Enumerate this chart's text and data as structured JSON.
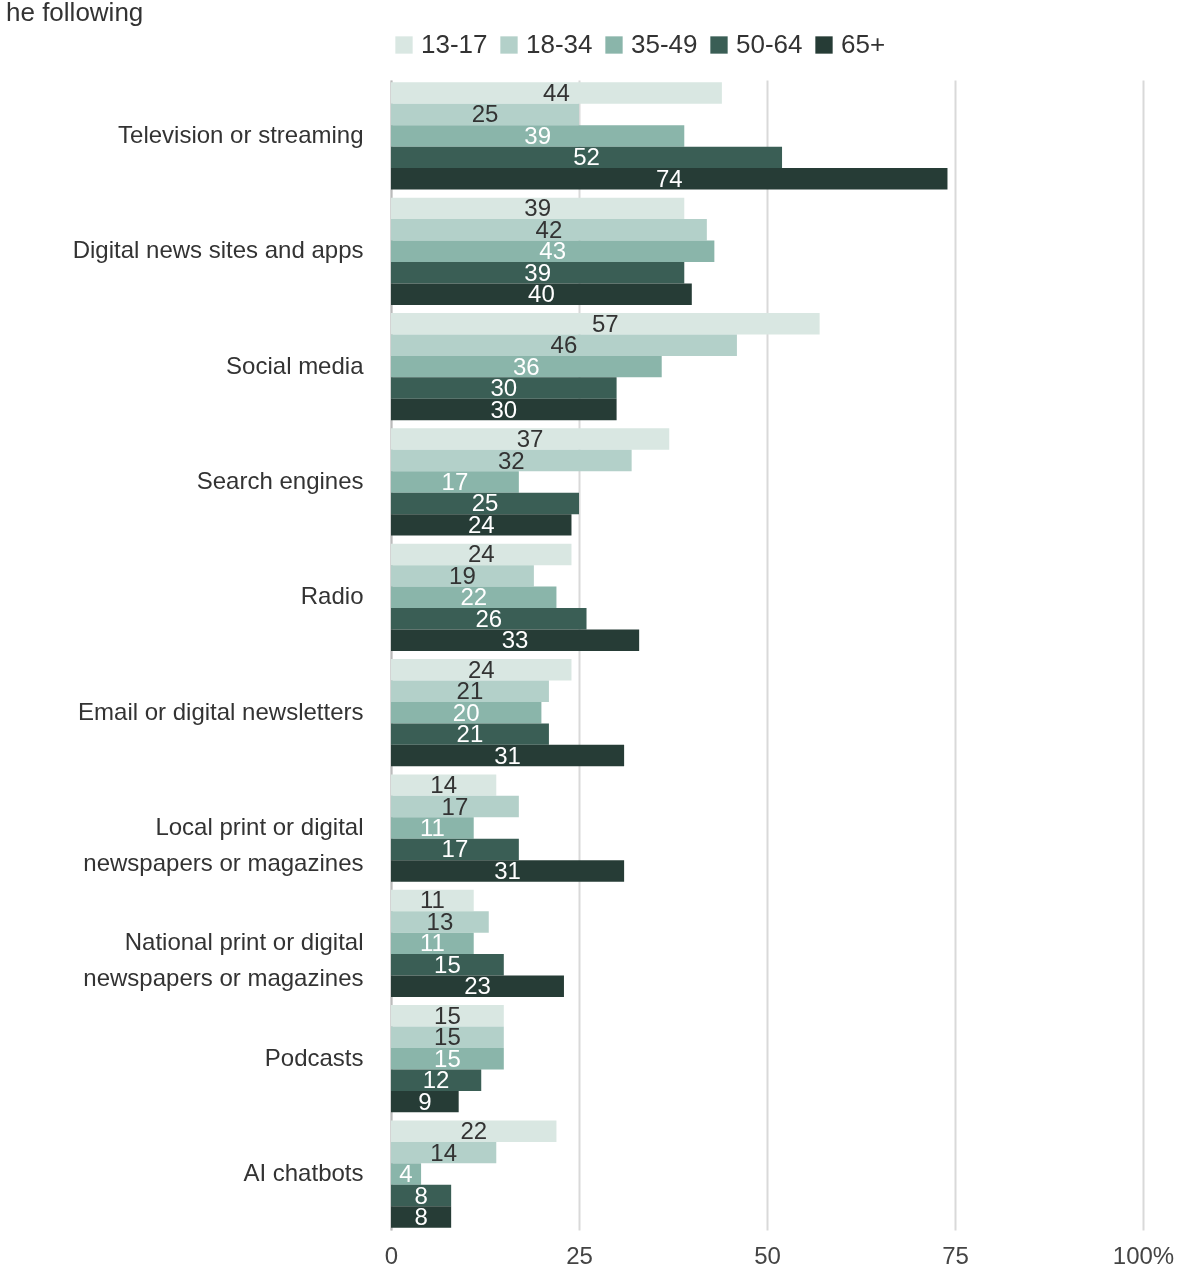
{
  "chart_data": {
    "type": "bar",
    "orientation": "horizontal",
    "title": "he following",
    "categories": [
      "Television or streaming",
      "Digital news sites and apps",
      "Social media",
      "Search engines",
      "Radio",
      "Email or digital newsletters",
      "Local print or digital newspapers or magazines",
      "National print or digital newspapers or magazines",
      "Podcasts",
      "AI chatbots"
    ],
    "series": [
      {
        "name": "13-17",
        "color": "#d9e7e2",
        "values": [
          44,
          39,
          57,
          37,
          24,
          24,
          14,
          11,
          15,
          22
        ]
      },
      {
        "name": "18-34",
        "color": "#b3d0c9",
        "values": [
          25,
          42,
          46,
          32,
          19,
          21,
          17,
          13,
          15,
          14
        ]
      },
      {
        "name": "35-49",
        "color": "#8ab5aa",
        "values": [
          39,
          43,
          36,
          17,
          22,
          20,
          11,
          11,
          15,
          4
        ]
      },
      {
        "name": "50-64",
        "color": "#3a5e55",
        "values": [
          52,
          39,
          30,
          25,
          26,
          21,
          17,
          15,
          12,
          8
        ]
      },
      {
        "name": "65+",
        "color": "#263c36",
        "values": [
          74,
          40,
          30,
          24,
          33,
          31,
          31,
          23,
          9,
          8
        ]
      }
    ],
    "xlim": [
      0,
      100
    ],
    "xticks": [
      0,
      25,
      50,
      75,
      {
        "value": 100,
        "label": "100%"
      }
    ],
    "grid": "x",
    "legend": "top",
    "data_labels": true
  }
}
